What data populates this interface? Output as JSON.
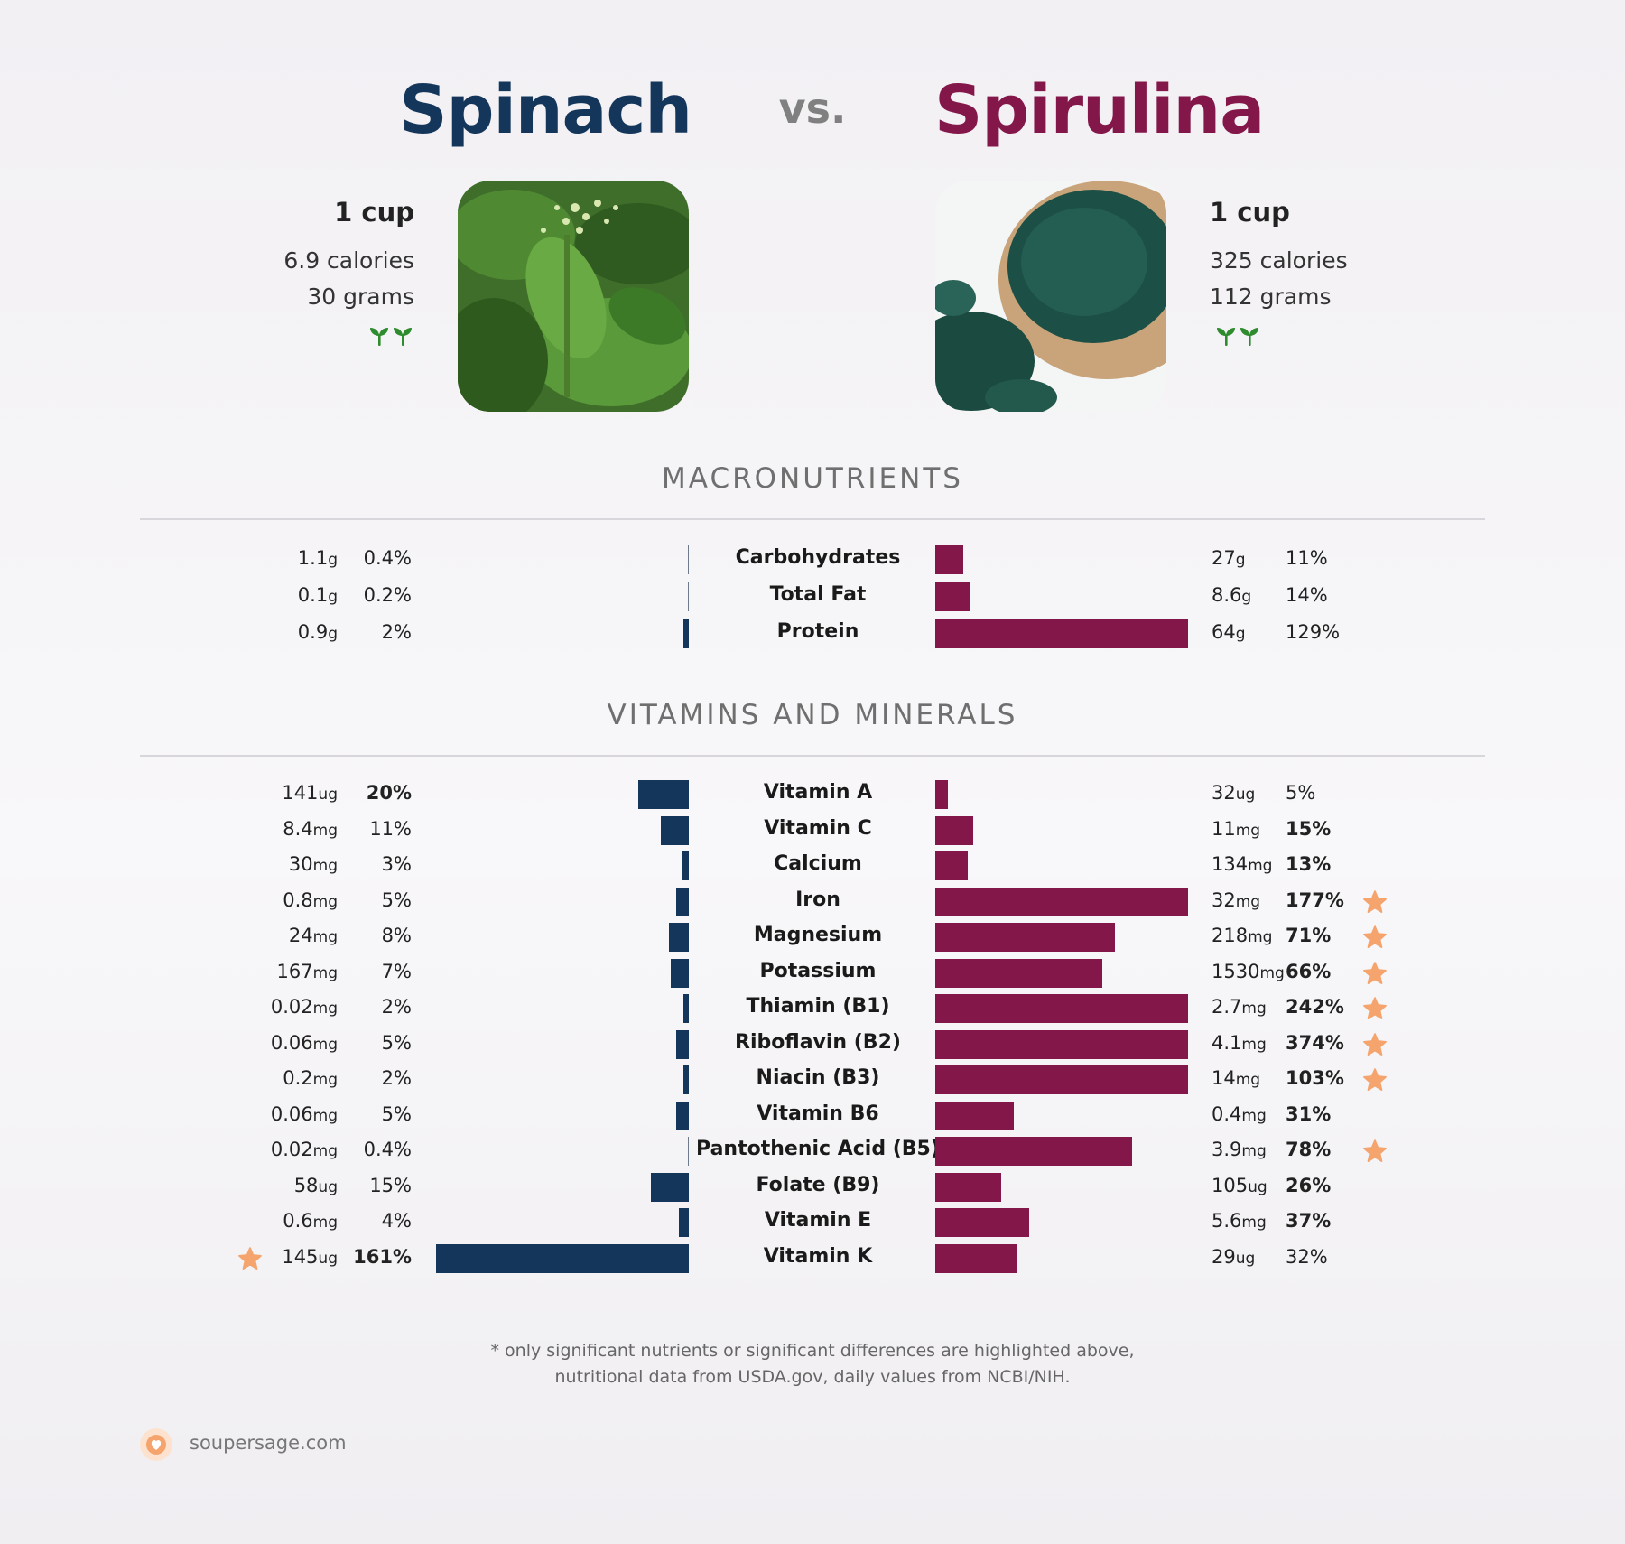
{
  "header": {
    "left_name": "Spinach",
    "vs": "vs.",
    "right_name": "Spirulina",
    "left_color": "#14365b",
    "right_color": "#84174a"
  },
  "left_food": {
    "serving": "1 cup",
    "calories": "6.9 calories",
    "grams": "30 grams",
    "tag_icon": "sprout-icon"
  },
  "right_food": {
    "serving": "1 cup",
    "calories": "325 calories",
    "grams": "112 grams",
    "tag_icon": "sprout-icon"
  },
  "sections": {
    "macro_title": "MACRONUTRIENTS",
    "vitamin_title": "VITAMINS AND MINERALS"
  },
  "chart_data": [
    {
      "type": "bar",
      "title": "MACRONUTRIENTS",
      "scale_max_percent": 100,
      "categories": [
        "Carbohydrates",
        "Total Fat",
        "Protein"
      ],
      "series": [
        {
          "name": "Spinach",
          "values": [
            1.1,
            0.1,
            0.9
          ],
          "units": [
            "g",
            "g",
            "g"
          ],
          "percent": [
            0.4,
            0.2,
            2
          ],
          "percent_labels": [
            "0.4%",
            "0.2%",
            "2%"
          ],
          "highlight": [
            false,
            false,
            false
          ],
          "star": [
            false,
            false,
            false
          ]
        },
        {
          "name": "Spirulina",
          "values": [
            27,
            8.6,
            64
          ],
          "units": [
            "g",
            "g",
            "g"
          ],
          "percent": [
            11,
            14,
            129
          ],
          "percent_labels": [
            "11%",
            "14%",
            "129%"
          ],
          "highlight": [
            false,
            false,
            false
          ],
          "star": [
            false,
            false,
            false
          ]
        }
      ]
    },
    {
      "type": "bar",
      "title": "VITAMINS AND MINERALS",
      "scale_max_percent": 100,
      "categories": [
        "Vitamin A",
        "Vitamin C",
        "Calcium",
        "Iron",
        "Magnesium",
        "Potassium",
        "Thiamin (B1)",
        "Riboflavin (B2)",
        "Niacin (B3)",
        "Vitamin B6",
        "Pantothenic Acid (B5)",
        "Folate (B9)",
        "Vitamin E",
        "Vitamin K"
      ],
      "series": [
        {
          "name": "Spinach",
          "values": [
            141,
            8.4,
            30,
            0.8,
            24,
            167,
            0.02,
            0.06,
            0.2,
            0.06,
            0.02,
            58,
            0.6,
            145
          ],
          "units": [
            "ug",
            "mg",
            "mg",
            "mg",
            "mg",
            "mg",
            "mg",
            "mg",
            "mg",
            "mg",
            "mg",
            "ug",
            "mg",
            "ug"
          ],
          "percent": [
            20,
            11,
            3,
            5,
            8,
            7,
            2,
            5,
            2,
            5,
            0.4,
            15,
            4,
            161
          ],
          "percent_labels": [
            "20%",
            "11%",
            "3%",
            "5%",
            "8%",
            "7%",
            "2%",
            "5%",
            "2%",
            "5%",
            "0.4%",
            "15%",
            "4%",
            "161%"
          ],
          "highlight": [
            true,
            false,
            false,
            false,
            false,
            false,
            false,
            false,
            false,
            false,
            false,
            false,
            false,
            true
          ],
          "star": [
            false,
            false,
            false,
            false,
            false,
            false,
            false,
            false,
            false,
            false,
            false,
            false,
            false,
            true
          ]
        },
        {
          "name": "Spirulina",
          "values": [
            32,
            11,
            134,
            32,
            218,
            1530,
            2.7,
            4.1,
            14,
            0.4,
            3.9,
            105,
            5.6,
            29
          ],
          "units": [
            "ug",
            "mg",
            "mg",
            "mg",
            "mg",
            "mg",
            "mg",
            "mg",
            "mg",
            "mg",
            "mg",
            "ug",
            "mg",
            "ug"
          ],
          "percent": [
            5,
            15,
            13,
            177,
            71,
            66,
            242,
            374,
            103,
            31,
            78,
            26,
            37,
            32
          ],
          "percent_labels": [
            "5%",
            "15%",
            "13%",
            "177%",
            "71%",
            "66%",
            "242%",
            "374%",
            "103%",
            "31%",
            "78%",
            "26%",
            "37%",
            "32%"
          ],
          "highlight": [
            false,
            true,
            true,
            true,
            true,
            true,
            true,
            true,
            true,
            true,
            true,
            true,
            true,
            false
          ],
          "star": [
            false,
            false,
            false,
            true,
            true,
            true,
            true,
            true,
            true,
            false,
            true,
            false,
            false,
            false
          ]
        }
      ]
    }
  ],
  "footnote": {
    "line1": "* only significant nutrients or significant differences are highlighted above,",
    "line2": "nutritional data from USDA.gov, daily values from NCBI/NIH."
  },
  "brand": {
    "name": "soupersage.com",
    "icon": "soupersage-logo-icon"
  },
  "colors": {
    "spinach_bar": "#14365b",
    "spirulina_bar": "#84174a",
    "star": "#f4a46c"
  }
}
